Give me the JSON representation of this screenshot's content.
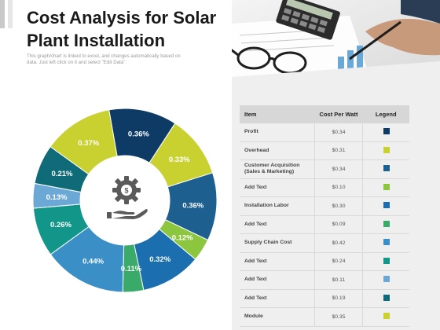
{
  "header": {
    "title": "Cost Analysis for Solar Plant Installation",
    "subtitle": "This graph/chart is linked to excel, and changes automatically based on data. Just left click on it and select \"Edit Data\"."
  },
  "icons": {
    "center": "gear-dollar-hand-icon",
    "photo": "desk-calculator-glasses-photo"
  },
  "table": {
    "headers": [
      "Item",
      "Cost Per Watt",
      "Legend"
    ],
    "rows": [
      {
        "item": "Profit",
        "cost": "$0.34",
        "color": "#0d3b66"
      },
      {
        "item": "Overhead",
        "cost": "$0.31",
        "color": "#c8d130"
      },
      {
        "item": "Customer Acquisition (Sales & Marketing)",
        "cost": "$0.34",
        "color": "#1d5f8f"
      },
      {
        "item": "Add Text",
        "cost": "$0.10",
        "color": "#8cc63f"
      },
      {
        "item": "Installation Labor",
        "cost": "$0.30",
        "color": "#1c6fae"
      },
      {
        "item": "Add Text",
        "cost": "$0.09",
        "color": "#3aaa6a"
      },
      {
        "item": "Supply Chain Cost",
        "cost": "$0.42",
        "color": "#3b8fc7"
      },
      {
        "item": "Add Text",
        "cost": "$0.24",
        "color": "#13968a"
      },
      {
        "item": "Add Text",
        "cost": "$0.11",
        "color": "#6ba8d6"
      },
      {
        "item": "Add Text",
        "cost": "$0.19",
        "color": "#0f6b78"
      },
      {
        "item": "Module",
        "cost": "$0.35",
        "color": "#c8d130"
      }
    ]
  },
  "chart_data": {
    "type": "pie",
    "donut": true,
    "start_angle_deg": -10,
    "slices": [
      {
        "label": "0.36%",
        "value": 0.36,
        "color": "#0d3b66"
      },
      {
        "label": "0.33%",
        "value": 0.33,
        "color": "#c8d130"
      },
      {
        "label": "0.36%",
        "value": 0.36,
        "color": "#1d5f8f"
      },
      {
        "label": "0.12%",
        "value": 0.12,
        "color": "#8cc63f"
      },
      {
        "label": "0.32%",
        "value": 0.32,
        "color": "#1c6fae"
      },
      {
        "label": "0.11%",
        "value": 0.11,
        "color": "#3aaa6a"
      },
      {
        "label": "0.44%",
        "value": 0.44,
        "color": "#3b8fc7"
      },
      {
        "label": "0.26%",
        "value": 0.26,
        "color": "#13968a"
      },
      {
        "label": "0.13%",
        "value": 0.13,
        "color": "#6ba8d6"
      },
      {
        "label": "0.21%",
        "value": 0.21,
        "color": "#0f6b78"
      },
      {
        "label": "0.37%",
        "value": 0.37,
        "color": "#c8d130"
      }
    ]
  }
}
